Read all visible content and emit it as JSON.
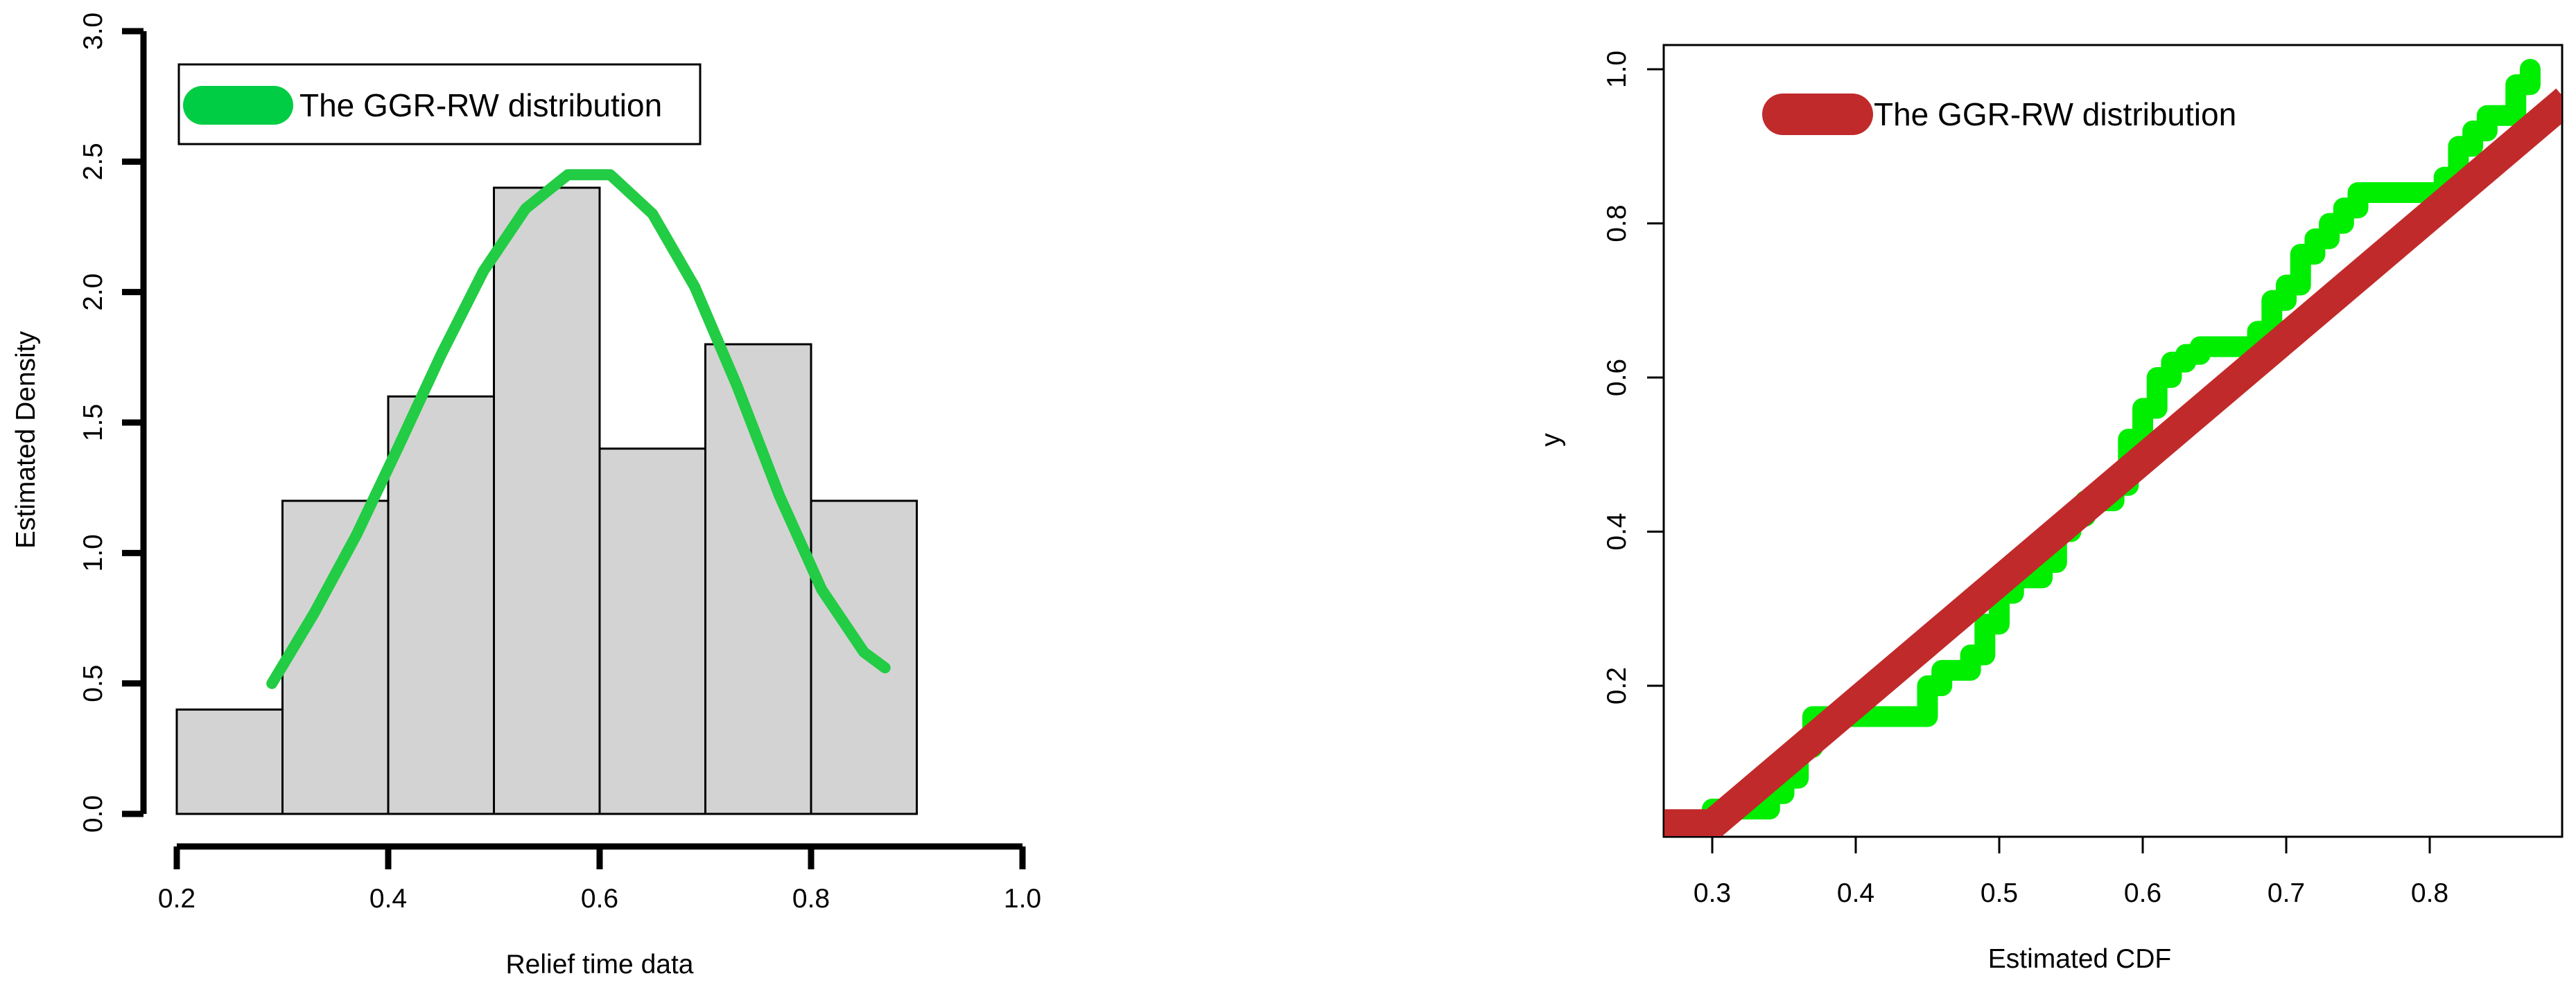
{
  "chart_data": [
    {
      "type": "histogram",
      "xlabel": "Relief time data",
      "ylabel": "Estimated Density",
      "xlim": [
        0.2,
        1.0
      ],
      "ylim": [
        0,
        3.0
      ],
      "x_ticks": [
        "0.2",
        "0.4",
        "0.6",
        "0.8",
        "1.0"
      ],
      "y_ticks": [
        "0.0",
        "0.5",
        "1.0",
        "1.5",
        "2.0",
        "2.5",
        "3.0"
      ],
      "bins": [
        {
          "from": 0.2,
          "to": 0.3,
          "density": 0.4
        },
        {
          "from": 0.3,
          "to": 0.4,
          "density": 1.2
        },
        {
          "from": 0.4,
          "to": 0.5,
          "density": 1.6
        },
        {
          "from": 0.5,
          "to": 0.6,
          "density": 2.4
        },
        {
          "from": 0.6,
          "to": 0.7,
          "density": 1.4
        },
        {
          "from": 0.7,
          "to": 0.8,
          "density": 1.8
        },
        {
          "from": 0.8,
          "to": 0.9,
          "density": 1.2
        }
      ],
      "curve": {
        "name": "The GGR-RW distribution",
        "color": "#22cc44",
        "x": [
          0.29,
          0.33,
          0.37,
          0.41,
          0.45,
          0.49,
          0.53,
          0.57,
          0.61,
          0.65,
          0.69,
          0.73,
          0.77,
          0.81,
          0.85,
          0.87
        ],
        "y": [
          0.5,
          0.77,
          1.07,
          1.41,
          1.76,
          2.08,
          2.32,
          2.45,
          2.45,
          2.3,
          2.02,
          1.64,
          1.22,
          0.86,
          0.62,
          0.56
        ]
      },
      "legend": {
        "label": "The GGR-RW distribution",
        "position": "top-left"
      },
      "bar_fill": "#d3d3d3"
    },
    {
      "type": "line",
      "xlabel": "Estimated CDF",
      "ylabel": "y",
      "xlim": [
        0.265,
        0.895
      ],
      "ylim": [
        -0.01,
        1.03
      ],
      "x_ticks": [
        "0.3",
        "0.4",
        "0.5",
        "0.6",
        "0.7",
        "0.8"
      ],
      "y_ticks": [
        "0.2",
        "0.4",
        "0.6",
        "0.8",
        "1.0"
      ],
      "series": [
        {
          "color": "#00ee00",
          "kind": "step",
          "x": [
            0.27,
            0.3,
            0.31,
            0.34,
            0.35,
            0.36,
            0.37,
            0.44,
            0.45,
            0.46,
            0.48,
            0.49,
            0.5,
            0.51,
            0.53,
            0.54,
            0.55,
            0.56,
            0.58,
            0.59,
            0.6,
            0.61,
            0.62,
            0.63,
            0.64,
            0.65,
            0.66,
            0.68,
            0.69,
            0.7,
            0.71,
            0.72,
            0.73,
            0.74,
            0.75,
            0.8,
            0.81,
            0.82,
            0.83,
            0.84,
            0.86,
            0.87
          ],
          "y": [
            0.02,
            0.04,
            0.04,
            0.06,
            0.08,
            0.12,
            0.16,
            0.16,
            0.2,
            0.22,
            0.24,
            0.28,
            0.32,
            0.34,
            0.36,
            0.4,
            0.42,
            0.44,
            0.46,
            0.52,
            0.56,
            0.6,
            0.62,
            0.63,
            0.64,
            0.64,
            0.64,
            0.66,
            0.7,
            0.72,
            0.76,
            0.78,
            0.8,
            0.82,
            0.84,
            0.84,
            0.86,
            0.9,
            0.92,
            0.94,
            0.98,
            1.0
          ]
        },
        {
          "name": "The GGR-RW distribution",
          "color": "#c12a2a",
          "kind": "line",
          "x": [
            0.265,
            0.3,
            0.895
          ],
          "y": [
            0.02,
            0.02,
            0.96
          ]
        }
      ],
      "legend": {
        "label": "The GGR-RW distribution",
        "position": "top-left"
      }
    }
  ]
}
